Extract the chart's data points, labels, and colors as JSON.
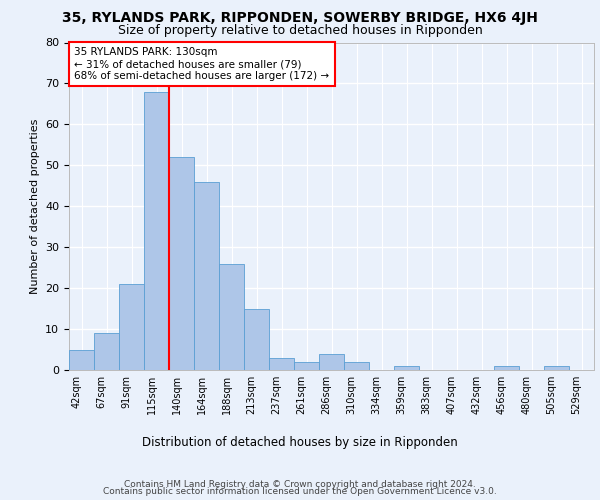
{
  "title": "35, RYLANDS PARK, RIPPONDEN, SOWERBY BRIDGE, HX6 4JH",
  "subtitle": "Size of property relative to detached houses in Ripponden",
  "xlabel": "Distribution of detached houses by size in Ripponden",
  "ylabel": "Number of detached properties",
  "categories": [
    "42sqm",
    "67sqm",
    "91sqm",
    "115sqm",
    "140sqm",
    "164sqm",
    "188sqm",
    "213sqm",
    "237sqm",
    "261sqm",
    "286sqm",
    "310sqm",
    "334sqm",
    "359sqm",
    "383sqm",
    "407sqm",
    "432sqm",
    "456sqm",
    "480sqm",
    "505sqm",
    "529sqm"
  ],
  "values": [
    5,
    9,
    21,
    68,
    52,
    46,
    26,
    15,
    3,
    2,
    4,
    2,
    0,
    1,
    0,
    0,
    0,
    1,
    0,
    1,
    0
  ],
  "bar_color": "#aec6e8",
  "bar_edgecolor": "#5a9fd4",
  "vline_x_index": 3.5,
  "vline_color": "red",
  "annotation_text": "35 RYLANDS PARK: 130sqm\n← 31% of detached houses are smaller (79)\n68% of semi-detached houses are larger (172) →",
  "annotation_box_color": "white",
  "annotation_box_edgecolor": "red",
  "annotation_fontsize": 7.5,
  "ylim": [
    0,
    80
  ],
  "yticks": [
    0,
    10,
    20,
    30,
    40,
    50,
    60,
    70,
    80
  ],
  "title_fontsize": 10,
  "subtitle_fontsize": 9,
  "xlabel_fontsize": 8.5,
  "ylabel_fontsize": 8,
  "footer_line1": "Contains HM Land Registry data © Crown copyright and database right 2024.",
  "footer_line2": "Contains public sector information licensed under the Open Government Licence v3.0.",
  "footer_fontsize": 6.5,
  "background_color": "#eaf1fb",
  "plot_background_color": "#eaf1fb",
  "grid_color": "white",
  "tick_label_rotation": 90
}
